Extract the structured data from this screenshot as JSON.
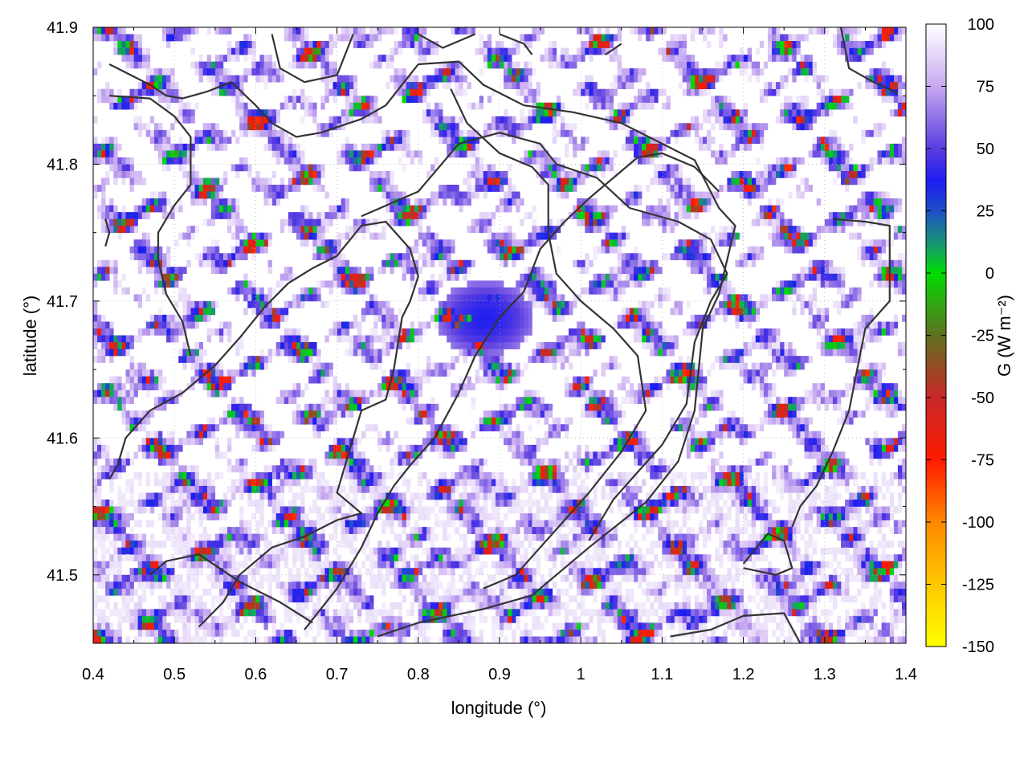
{
  "chart_data": {
    "type": "heatmap",
    "xlabel": "longitude (°)",
    "ylabel": "latitude (°)",
    "colorbar_label": "G (W m⁻²)",
    "xlim": [
      0.4,
      1.4
    ],
    "ylim": [
      41.45,
      41.9
    ],
    "x_ticks": [
      0.4,
      0.5,
      0.6,
      0.7,
      0.8,
      0.9,
      1.0,
      1.1,
      1.2,
      1.3,
      1.4
    ],
    "x_tick_labels": [
      "0.4",
      "0.5",
      "0.6",
      "0.7",
      "0.8",
      "0.9",
      "1",
      "1.1",
      "1.2",
      "1.3",
      "1.4"
    ],
    "y_ticks": [
      41.5,
      41.6,
      41.7,
      41.8,
      41.9
    ],
    "y_tick_labels": [
      "41.5",
      "41.6",
      "41.7",
      "41.8",
      "41.9"
    ],
    "colorbar_ticks": [
      100,
      75,
      50,
      25,
      0,
      -25,
      -50,
      -75,
      -100,
      -125,
      -150
    ],
    "colorbar_tick_labels": [
      "100",
      "75",
      "50",
      "25",
      "0",
      "-25",
      "-50",
      "-75",
      "-100",
      "-125",
      "-150"
    ],
    "colorbar_range": [
      -150,
      100
    ],
    "colorscale": [
      {
        "value": 100,
        "color": "#ffffff"
      },
      {
        "value": 75,
        "color": "#c7a8f0"
      },
      {
        "value": 50,
        "color": "#5a3de0"
      },
      {
        "value": 37,
        "color": "#1d1df0"
      },
      {
        "value": 25,
        "color": "#1f4fc8"
      },
      {
        "value": 10,
        "color": "#14a064"
      },
      {
        "value": 0,
        "color": "#00dd00"
      },
      {
        "value": -25,
        "color": "#607020"
      },
      {
        "value": -50,
        "color": "#c82828"
      },
      {
        "value": -75,
        "color": "#ff1a00"
      },
      {
        "value": -100,
        "color": "#ff8800"
      },
      {
        "value": -125,
        "color": "#ffc800"
      },
      {
        "value": -150,
        "color": "#ffff00"
      }
    ],
    "grid": true,
    "legend": "colorbar-right",
    "contour_color": "#333333",
    "contours": [
      [
        [
          0.42,
          41.873
        ],
        [
          0.47,
          41.858
        ],
        [
          0.49,
          41.85
        ],
        [
          0.51,
          41.848
        ],
        [
          0.54,
          41.853
        ],
        [
          0.57,
          41.86
        ],
        [
          0.6,
          41.843
        ],
        [
          0.62,
          41.83
        ],
        [
          0.65,
          41.82
        ],
        [
          0.68,
          41.823
        ],
        [
          0.73,
          41.833
        ],
        [
          0.76,
          41.843
        ],
        [
          0.8,
          41.873
        ],
        [
          0.85,
          41.875
        ],
        [
          0.88,
          41.858
        ],
        [
          0.93,
          41.843
        ],
        [
          0.99,
          41.838
        ],
        [
          1.05,
          41.83
        ],
        [
          1.1,
          41.815
        ],
        [
          1.14,
          41.803
        ],
        [
          1.17,
          41.768
        ],
        [
          1.19,
          41.755
        ],
        [
          1.17,
          41.705
        ],
        [
          1.15,
          41.68
        ],
        [
          1.14,
          41.62
        ],
        [
          1.12,
          41.583
        ],
        [
          1.08,
          41.553
        ],
        [
          1.01,
          41.52
        ],
        [
          0.97,
          41.5
        ],
        [
          0.94,
          41.485
        ],
        [
          0.88,
          41.475
        ],
        [
          0.8,
          41.465
        ],
        [
          0.75,
          41.455
        ]
      ],
      [
        [
          0.42,
          41.85
        ],
        [
          0.47,
          41.848
        ],
        [
          0.5,
          41.835
        ],
        [
          0.52,
          41.82
        ],
        [
          0.52,
          41.785
        ],
        [
          0.5,
          41.77
        ],
        [
          0.48,
          41.75
        ],
        [
          0.48,
          41.73
        ],
        [
          0.49,
          41.705
        ],
        [
          0.51,
          41.685
        ],
        [
          0.52,
          41.66
        ]
      ],
      [
        [
          0.73,
          41.762
        ],
        [
          0.8,
          41.78
        ],
        [
          0.85,
          41.815
        ],
        [
          0.9,
          41.823
        ],
        [
          0.95,
          41.815
        ],
        [
          0.97,
          41.8
        ],
        [
          1.02,
          41.79
        ],
        [
          1.06,
          41.768
        ],
        [
          1.12,
          41.758
        ],
        [
          1.16,
          41.745
        ],
        [
          1.18,
          41.72
        ],
        [
          1.16,
          41.7
        ],
        [
          1.14,
          41.67
        ],
        [
          1.13,
          41.625
        ],
        [
          1.1,
          41.595
        ],
        [
          1.07,
          41.575
        ],
        [
          1.04,
          41.555
        ],
        [
          1.01,
          41.525
        ]
      ],
      [
        [
          0.42,
          41.57
        ],
        [
          0.43,
          41.58
        ],
        [
          0.44,
          41.6
        ],
        [
          0.47,
          41.62
        ],
        [
          0.51,
          41.633
        ],
        [
          0.55,
          41.653
        ],
        [
          0.58,
          41.673
        ],
        [
          0.61,
          41.695
        ],
        [
          0.64,
          41.713
        ],
        [
          0.67,
          41.724
        ],
        [
          0.7,
          41.733
        ],
        [
          0.73,
          41.755
        ],
        [
          0.76,
          41.758
        ],
        [
          0.79,
          41.738
        ],
        [
          0.8,
          41.718
        ],
        [
          0.79,
          41.7
        ],
        [
          0.78,
          41.688
        ],
        [
          0.77,
          41.65
        ],
        [
          0.76,
          41.628
        ],
        [
          0.73,
          41.62
        ],
        [
          0.71,
          41.58
        ],
        [
          0.7,
          41.56
        ],
        [
          0.73,
          41.545
        ],
        [
          0.7,
          41.54
        ],
        [
          0.66,
          41.528
        ],
        [
          0.62,
          41.52
        ],
        [
          0.58,
          41.5
        ],
        [
          0.56,
          41.48
        ],
        [
          0.53,
          41.462
        ]
      ],
      [
        [
          0.84,
          41.855
        ],
        [
          0.86,
          41.83
        ],
        [
          0.9,
          41.808
        ],
        [
          0.94,
          41.798
        ],
        [
          0.96,
          41.785
        ],
        [
          0.96,
          41.75
        ],
        [
          0.97,
          41.72
        ],
        [
          1.0,
          41.7
        ],
        [
          1.04,
          41.68
        ],
        [
          1.07,
          41.66
        ],
        [
          1.08,
          41.62
        ],
        [
          1.05,
          41.59
        ],
        [
          1.01,
          41.56
        ],
        [
          0.98,
          41.54
        ],
        [
          0.95,
          41.52
        ],
        [
          0.92,
          41.5
        ],
        [
          0.88,
          41.49
        ]
      ],
      [
        [
          0.66,
          41.46
        ],
        [
          0.7,
          41.49
        ],
        [
          0.73,
          41.52
        ],
        [
          0.75,
          41.545
        ],
        [
          0.77,
          41.565
        ],
        [
          0.79,
          41.58
        ],
        [
          0.82,
          41.6
        ],
        [
          0.85,
          41.633
        ],
        [
          0.87,
          41.66
        ],
        [
          0.9,
          41.688
        ],
        [
          0.93,
          41.707
        ],
        [
          0.95,
          41.738
        ],
        [
          0.98,
          41.758
        ],
        [
          1.01,
          41.775
        ],
        [
          1.04,
          41.79
        ],
        [
          1.07,
          41.805
        ],
        [
          1.1,
          41.808
        ],
        [
          1.14,
          41.798
        ],
        [
          1.17,
          41.78
        ]
      ],
      [
        [
          0.47,
          41.5
        ],
        [
          0.49,
          41.51
        ],
        [
          0.53,
          41.515
        ],
        [
          0.58,
          41.495
        ],
        [
          0.63,
          41.48
        ],
        [
          0.67,
          41.465
        ]
      ],
      [
        [
          1.2,
          41.508
        ],
        [
          1.23,
          41.53
        ],
        [
          1.25,
          41.525
        ],
        [
          1.26,
          41.505
        ],
        [
          1.24,
          41.5
        ],
        [
          1.2,
          41.505
        ]
      ],
      [
        [
          1.11,
          41.455
        ],
        [
          1.16,
          41.46
        ],
        [
          1.2,
          41.47
        ],
        [
          1.25,
          41.472
        ],
        [
          1.27,
          41.45
        ]
      ],
      [
        [
          1.31,
          41.76
        ],
        [
          1.35,
          41.758
        ],
        [
          1.38,
          41.755
        ],
        [
          1.38,
          41.7
        ],
        [
          1.35,
          41.68
        ],
        [
          1.33,
          41.62
        ],
        [
          1.31,
          41.59
        ],
        [
          1.29,
          41.565
        ],
        [
          1.27,
          41.55
        ],
        [
          1.26,
          41.535
        ]
      ],
      [
        [
          0.62,
          41.895
        ],
        [
          0.63,
          41.87
        ],
        [
          0.66,
          41.86
        ],
        [
          0.7,
          41.865
        ],
        [
          0.72,
          41.895
        ]
      ],
      [
        [
          0.8,
          41.895
        ],
        [
          0.83,
          41.885
        ],
        [
          0.87,
          41.895
        ]
      ],
      [
        [
          0.9,
          41.895
        ],
        [
          0.93,
          41.888
        ],
        [
          0.94,
          41.88
        ]
      ],
      [
        [
          1.03,
          41.88
        ],
        [
          1.05,
          41.888
        ]
      ],
      [
        [
          1.32,
          41.9
        ],
        [
          1.33,
          41.87
        ],
        [
          1.36,
          41.86
        ],
        [
          1.39,
          41.852
        ]
      ],
      [
        [
          0.415,
          41.76
        ],
        [
          0.42,
          41.75
        ],
        [
          0.415,
          41.74
        ]
      ]
    ]
  }
}
